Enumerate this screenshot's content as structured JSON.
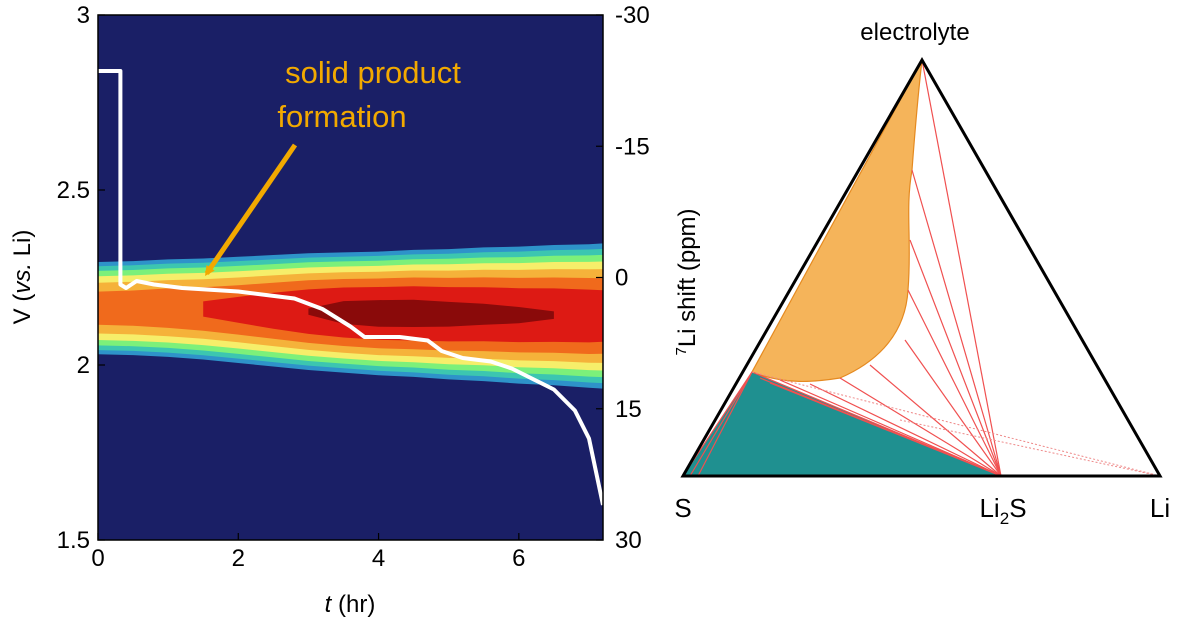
{
  "colors": {
    "background": "#1a1f66",
    "contour_levels": [
      "#2e93c9",
      "#3cc6b0",
      "#7cf07a",
      "#f6ee6a",
      "#f5b23a",
      "#f06a1c",
      "#dd1a14",
      "#8a0a0a"
    ],
    "voltage_curve": "#ffffff",
    "annotation": "#f2a900",
    "tie_lines": "#f05050",
    "electrolyte_region": "#f5b45a",
    "li2s_region": "#1f9090"
  },
  "chart_data": [
    {
      "type": "line",
      "xlabel_italic": "t",
      "xlabel_rest": " (hr)",
      "ylabel_prefix": "V (",
      "ylabel_italic": "vs.",
      "ylabel_suffix": " Li)",
      "y2label_sup": "7",
      "y2label_rest": "Li shift (ppm)",
      "xlim": [
        0,
        7.2
      ],
      "ylim": [
        1.5,
        3.0
      ],
      "y2lim": [
        30,
        -30
      ],
      "x_ticks": [
        0,
        2,
        4,
        6
      ],
      "x_tick_labels": [
        "0",
        "2",
        "4",
        "6"
      ],
      "y_ticks": [
        1.5,
        2.0,
        2.5,
        3.0
      ],
      "y_tick_labels": [
        "1.5",
        "2",
        "2.5",
        "3"
      ],
      "y2_ticks": [
        -30,
        -15,
        0,
        15,
        30
      ],
      "y2_tick_labels": [
        "-30",
        "-15",
        "0",
        "15",
        "30"
      ],
      "annotation_lines": [
        "solid product",
        "formation"
      ],
      "annotation_arrow_target": {
        "x": 1.55,
        "shift": 0
      },
      "heatmap": {
        "x": [
          0,
          0.5,
          1,
          1.5,
          2,
          2.5,
          3,
          3.5,
          4,
          4.5,
          5,
          5.5,
          6,
          6.5,
          7,
          7.2
        ],
        "shift_center": [
          3.5,
          3.5,
          3.5,
          3.6,
          3.7,
          3.8,
          3.9,
          4.0,
          4.1,
          4.1,
          4.2,
          4.2,
          4.3,
          4.3,
          4.4,
          4.4
        ],
        "shift_halfwidth": [
          5.5,
          5.6,
          5.8,
          6.0,
          6.3,
          6.6,
          6.9,
          7.1,
          7.3,
          7.5,
          7.7,
          7.9,
          8.1,
          8.3,
          8.5,
          8.6
        ],
        "peak_intensity": [
          0.78,
          0.79,
          0.81,
          0.83,
          0.86,
          0.9,
          0.94,
          0.97,
          0.98,
          0.98,
          0.97,
          0.96,
          0.95,
          0.94,
          0.93,
          0.92
        ]
      },
      "series": [
        {
          "x": [
            0,
            0.32,
            0.32,
            0.4,
            0.55,
            0.8,
            1.2,
            2.0,
            2.8,
            3.2,
            3.6,
            3.8,
            4.3,
            4.7,
            4.9,
            5.2,
            5.6,
            5.9,
            6.1,
            6.3,
            6.5,
            6.8,
            7.0,
            7.2
          ],
          "y": [
            2.84,
            2.84,
            2.23,
            2.22,
            2.24,
            2.23,
            2.22,
            2.21,
            2.19,
            2.16,
            2.11,
            2.08,
            2.08,
            2.07,
            2.04,
            2.02,
            2.01,
            1.99,
            1.97,
            1.95,
            1.93,
            1.87,
            1.79,
            1.6
          ]
        }
      ]
    },
    {
      "type": "ternary",
      "vertex_labels": {
        "top": "electrolyte",
        "left": "S",
        "middle_base": "Li",
        "middle_sub": "2",
        "middle_tail": "S",
        "right": "Li"
      }
    }
  ]
}
